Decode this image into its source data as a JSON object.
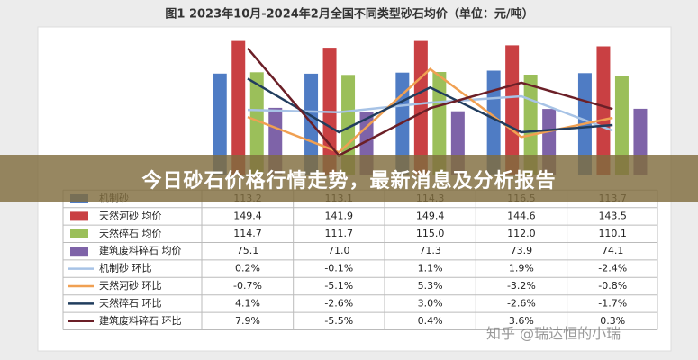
{
  "headline": "今日砂石价格行情走势，最新消息及分析报告",
  "watermark": "知乎 @瑞达恒的小瑞",
  "chart_data": {
    "type": "bar",
    "title": "图1  2023年10月-2024年2月全国不同类型砂石均价（单位：元/吨）",
    "categories": [
      null,
      null,
      null,
      null,
      null
    ],
    "ylim": [
      0,
      160
    ],
    "y2lim": [
      -8,
      10
    ],
    "series": [
      {
        "name": "机制砂",
        "type": "bar",
        "color": "#4f7cc4",
        "values": [
          113.2,
          113.1,
          114.3,
          116.5,
          113.7
        ],
        "value_labels": [
          "113.2",
          "113.1",
          "114.3",
          "116.5",
          "113.7"
        ]
      },
      {
        "name": "天然河砂  均价",
        "type": "bar",
        "color": "#c94043",
        "values": [
          149.4,
          141.9,
          149.4,
          144.6,
          143.5
        ],
        "value_labels": [
          "149.4",
          "141.9",
          "149.4",
          "144.6",
          "143.5"
        ]
      },
      {
        "name": "天然碎石  均价",
        "type": "bar",
        "color": "#9bbf5a",
        "values": [
          114.7,
          111.7,
          115.0,
          112.0,
          110.1
        ],
        "value_labels": [
          "114.7",
          "111.7",
          "115.0",
          "112.0",
          "110.1"
        ]
      },
      {
        "name": "建筑废料碎石  均价",
        "type": "bar",
        "color": "#7e63a8",
        "values": [
          75.1,
          71.0,
          71.3,
          73.9,
          74.1
        ],
        "value_labels": [
          "75.1",
          "71.0",
          "71.3",
          "73.9",
          "74.1"
        ]
      },
      {
        "name": "机制砂  环比",
        "type": "line",
        "axis": "y2",
        "color": "#a7c3e6",
        "values": [
          0.2,
          -0.1,
          1.1,
          1.9,
          -2.4
        ],
        "value_labels": [
          "0.2%",
          "-0.1%",
          "1.1%",
          "1.9%",
          "-2.4%"
        ]
      },
      {
        "name": "天然河砂  环比",
        "type": "line",
        "axis": "y2",
        "color": "#f0a052",
        "values": [
          -0.7,
          -5.1,
          5.3,
          -3.2,
          -0.8
        ],
        "value_labels": [
          "-0.7%",
          "-5.1%",
          "5.3%",
          "-3.2%",
          "-0.8%"
        ]
      },
      {
        "name": "天然碎石  环比",
        "type": "line",
        "axis": "y2",
        "color": "#213d5e",
        "values": [
          4.1,
          -2.6,
          3.0,
          -2.6,
          -1.7
        ],
        "value_labels": [
          "4.1%",
          "-2.6%",
          "3.0%",
          "-2.6%",
          "-1.7%"
        ]
      },
      {
        "name": "建筑废料碎石  环比",
        "type": "line",
        "axis": "y2",
        "color": "#6b1f27",
        "values": [
          7.9,
          -5.5,
          0.4,
          3.6,
          0.3
        ],
        "value_labels": [
          "7.9%",
          "-5.5%",
          "0.4%",
          "3.6%",
          "0.3%"
        ]
      }
    ]
  }
}
